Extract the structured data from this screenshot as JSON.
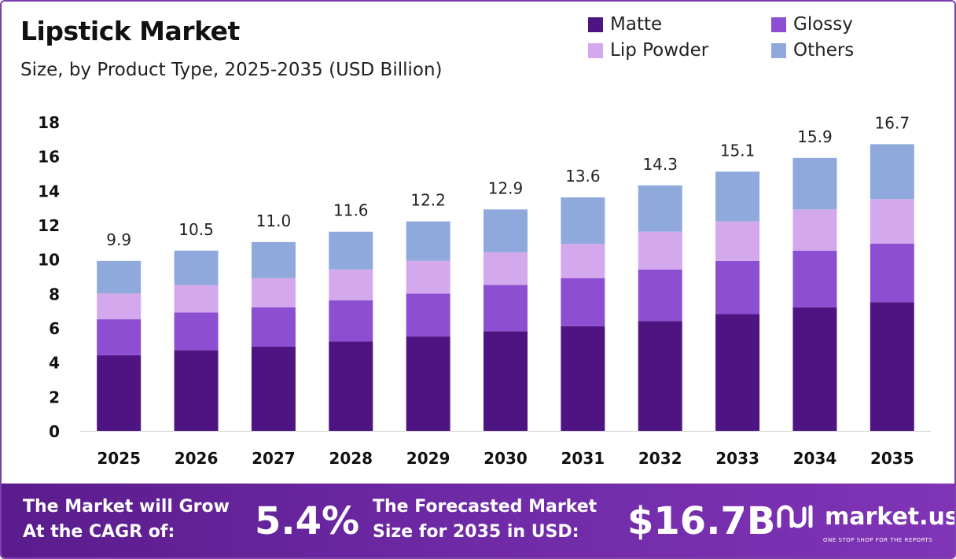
{
  "header": {
    "title": "Lipstick Market",
    "subtitle": "Size, by Product Type, 2025-2035 (USD Billion)"
  },
  "legend": [
    {
      "label": "Matte",
      "color": "#4e1582"
    },
    {
      "label": "Glossy",
      "color": "#8c4fd1"
    },
    {
      "label": "Lip Powder",
      "color": "#d4a8ec"
    },
    {
      "label": "Others",
      "color": "#8fa9dc"
    }
  ],
  "chart_data": {
    "type": "bar",
    "stacked": true,
    "categories": [
      "2025",
      "2026",
      "2027",
      "2028",
      "2029",
      "2030",
      "2031",
      "2032",
      "2033",
      "2034",
      "2035"
    ],
    "series": [
      {
        "name": "Matte",
        "color": "#4e1582",
        "values": [
          4.4,
          4.7,
          4.9,
          5.2,
          5.5,
          5.8,
          6.1,
          6.4,
          6.8,
          7.2,
          7.5
        ]
      },
      {
        "name": "Glossy",
        "color": "#8c4fd1",
        "values": [
          2.1,
          2.2,
          2.3,
          2.4,
          2.5,
          2.7,
          2.8,
          3.0,
          3.1,
          3.3,
          3.4
        ]
      },
      {
        "name": "Lip Powder",
        "color": "#d4a8ec",
        "values": [
          1.5,
          1.6,
          1.7,
          1.8,
          1.9,
          1.9,
          2.0,
          2.2,
          2.3,
          2.4,
          2.6
        ]
      },
      {
        "name": "Others",
        "color": "#8fa9dc",
        "values": [
          1.9,
          2.0,
          2.1,
          2.2,
          2.3,
          2.5,
          2.7,
          2.7,
          2.9,
          3.0,
          3.2
        ]
      }
    ],
    "totals": [
      "9.9",
      "10.5",
      "11.0",
      "11.6",
      "12.2",
      "12.9",
      "13.6",
      "14.3",
      "15.1",
      "15.9",
      "16.7"
    ],
    "total_values": [
      9.9,
      10.5,
      11.0,
      11.6,
      12.2,
      12.9,
      13.6,
      14.3,
      15.1,
      15.9,
      16.7
    ],
    "yticks": [
      "0",
      "2",
      "4",
      "6",
      "8",
      "10",
      "12",
      "14",
      "16",
      "18"
    ],
    "ylim": [
      0,
      18
    ],
    "grid": false,
    "legend_position": "top-right"
  },
  "footer": {
    "cagr_label_line1": "The Market will Grow",
    "cagr_label_line2": "At the CAGR of:",
    "cagr_value": "5.4%",
    "forecast_label_line1": "The Forecasted Market",
    "forecast_label_line2": "Size for 2035 in USD:",
    "forecast_value": "$16.7B",
    "brand_name": "market.us",
    "brand_tagline": "ONE STOP SHOP FOR THE REPORTS",
    "brand_icon": "market-us-logo-icon"
  }
}
